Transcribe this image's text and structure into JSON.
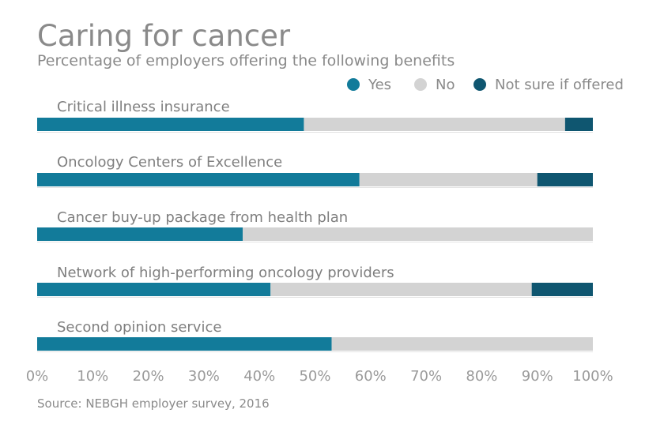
{
  "chart_data": {
    "type": "bar",
    "orientation": "horizontal",
    "stacked": true,
    "title": "Caring for cancer",
    "subtitle": "Percentage of employers offering the following benefits",
    "source": "Source: NEBGH employer survey, 2016",
    "categories": [
      "Critical illness insurance",
      "Oncology Centers of Excellence",
      "Cancer buy-up package from health plan",
      "Network of high-performing oncology providers",
      "Second opinion service"
    ],
    "series": [
      {
        "name": "Yes",
        "color": "#127b9a",
        "values": [
          48,
          58,
          37,
          42,
          53
        ]
      },
      {
        "name": "No",
        "color": "#d3d3d3",
        "values": [
          47,
          32,
          63,
          47,
          47
        ]
      },
      {
        "name": "Not sure if offered",
        "color": "#0f5670",
        "values": [
          5,
          10,
          0,
          11,
          0
        ]
      }
    ],
    "xlim": [
      0,
      100
    ],
    "xticks": [
      "0%",
      "10%",
      "20%",
      "30%",
      "40%",
      "50%",
      "60%",
      "70%",
      "80%",
      "90%",
      "100%"
    ],
    "legend_position": "top-right"
  }
}
